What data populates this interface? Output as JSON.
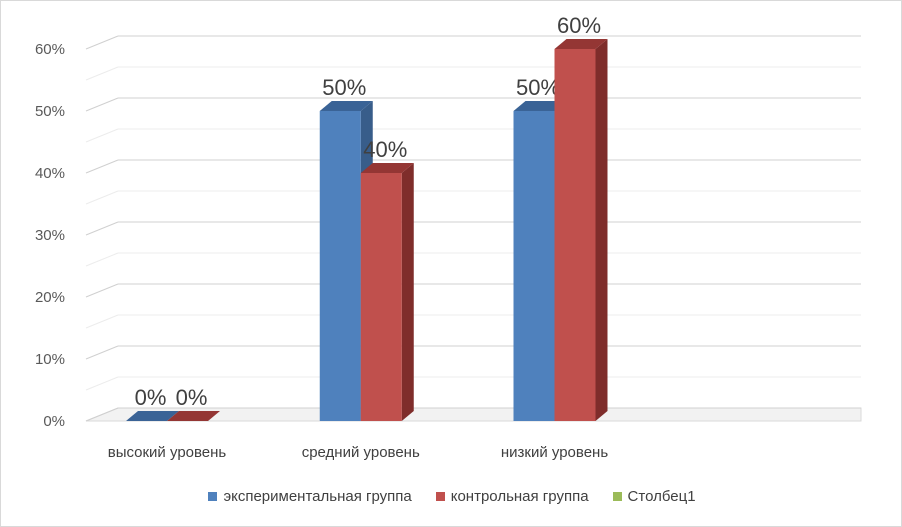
{
  "chart_data": {
    "type": "bar",
    "subtype": "3d-clustered",
    "categories": [
      "высокий уровень",
      "средний уровень",
      "низкий уровень"
    ],
    "series": [
      {
        "name": "экспериментальная группа",
        "values": [
          0,
          50,
          50
        ],
        "color": "#4f81bd",
        "side_color": "#385d8a",
        "top_color": "#3a6396"
      },
      {
        "name": "контрольная группа",
        "values": [
          0,
          40,
          60
        ],
        "color": "#c0504d",
        "side_color": "#7f2d2b",
        "top_color": "#943634"
      },
      {
        "name": "Столбец1",
        "values": [
          null,
          null,
          null
        ],
        "color": "#9bbb59"
      }
    ],
    "data_labels": [
      [
        "0%",
        "50%",
        "50%"
      ],
      [
        "0%",
        "40%",
        "60%"
      ]
    ],
    "yticks": [
      "0%",
      "10%",
      "20%",
      "30%",
      "40%",
      "50%",
      "60%"
    ],
    "ylim": [
      0,
      60
    ],
    "grid": true,
    "legend_position": "bottom"
  }
}
